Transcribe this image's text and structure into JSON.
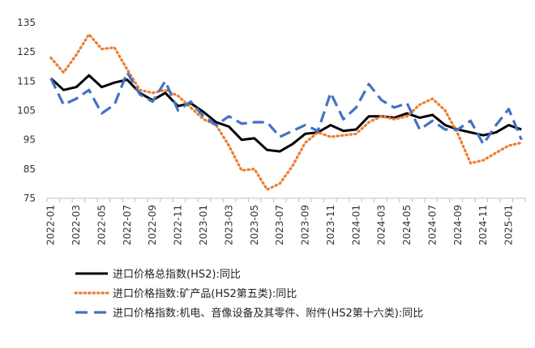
{
  "chart_data": {
    "type": "line",
    "title": "",
    "xlabel": "",
    "ylabel": "",
    "ylim": [
      75,
      135
    ],
    "yticks": [
      75,
      85,
      95,
      105,
      115,
      125,
      135
    ],
    "grid": false,
    "legend_position": "bottom",
    "x": [
      "2022-01",
      "2022-02",
      "2022-03",
      "2022-04",
      "2022-05",
      "2022-06",
      "2022-07",
      "2022-08",
      "2022-09",
      "2022-10",
      "2022-11",
      "2022-12",
      "2023-01",
      "2023-02",
      "2023-03",
      "2023-04",
      "2023-05",
      "2023-06",
      "2023-07",
      "2023-08",
      "2023-09",
      "2023-10",
      "2023-11",
      "2023-12",
      "2024-01",
      "2024-02",
      "2024-03",
      "2024-04",
      "2024-05",
      "2024-06",
      "2024-07",
      "2024-08",
      "2024-09",
      "2024-10",
      "2024-11",
      "2024-12",
      "2025-01",
      "2025-02"
    ],
    "x_tick_labels": [
      "2022-01",
      "2022-03",
      "2022-05",
      "2022-07",
      "2022-09",
      "2022-11",
      "2023-01",
      "2023-03",
      "2023-05",
      "2023-07",
      "2023-09",
      "2023-11",
      "2024-01",
      "2024-03",
      "2024-05",
      "2024-07",
      "2024-09",
      "2024-11",
      "2025-01"
    ],
    "series": [
      {
        "name": "进口价格总指数(HS2):同比",
        "color": "#000000",
        "style": "solid",
        "values": [
          116,
          112,
          113,
          117,
          113,
          114.5,
          115.5,
          111,
          108.5,
          111,
          106.5,
          107.5,
          104.5,
          101,
          99.5,
          95,
          95.5,
          91.5,
          91,
          93.5,
          97,
          97.5,
          100,
          98,
          98.5,
          103,
          103,
          102.5,
          104,
          102.5,
          103.5,
          100,
          98.5,
          97.5,
          96.5,
          97.5,
          100,
          98.5
        ]
      },
      {
        "name": "进口价格指数:矿产品(HS2第五类):同比",
        "color": "#ED7D31",
        "style": "dotted",
        "values": [
          123,
          118,
          124,
          131,
          126,
          126.5,
          119,
          112,
          111,
          112,
          110,
          106,
          102,
          100,
          93,
          84.5,
          85,
          78,
          80,
          86,
          94,
          97.5,
          96,
          96.5,
          97,
          101,
          103,
          102,
          103,
          107,
          109,
          105,
          97,
          87,
          88,
          90.5,
          93,
          94
        ]
      },
      {
        "name": "进口价格指数:机电、音像设备及其零件、附件(HS2第十六类):同比",
        "color": "#4472C4",
        "style": "dashed",
        "values": [
          116,
          107,
          109,
          112,
          104,
          107,
          118,
          110.5,
          108,
          115,
          105,
          108,
          103,
          100,
          103,
          100.5,
          101,
          101,
          96,
          98,
          100,
          98,
          111,
          102,
          106,
          114,
          108.5,
          106,
          107.5,
          98.5,
          101.5,
          98.5,
          98.5,
          101.5,
          93.5,
          100,
          105.5,
          95
        ]
      }
    ]
  }
}
